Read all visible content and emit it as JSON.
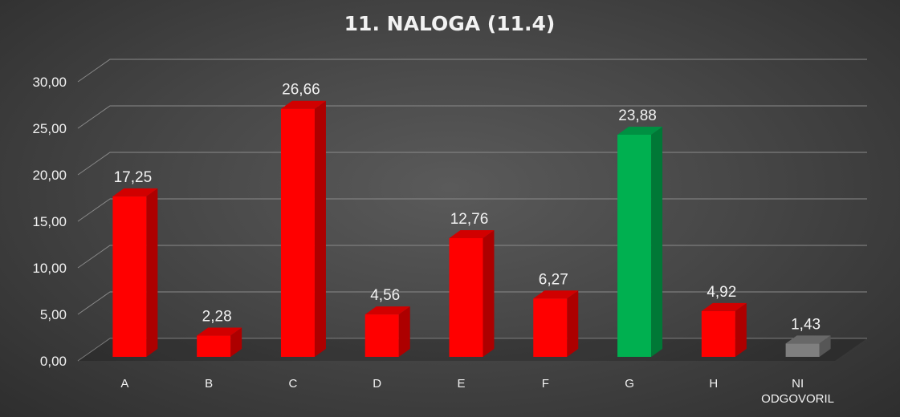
{
  "chart_data": {
    "type": "bar",
    "title": "11. NALOGA (11.4)",
    "categories": [
      "A",
      "B",
      "C",
      "D",
      "E",
      "F",
      "G",
      "H",
      "NI ODGOVORIL"
    ],
    "values": [
      17.25,
      2.28,
      26.66,
      4.56,
      12.76,
      6.27,
      23.88,
      4.92,
      1.43
    ],
    "value_labels": [
      "17,25",
      "2,28",
      "26,66",
      "4,56",
      "12,76",
      "6,27",
      "23,88",
      "4,92",
      "1,43"
    ],
    "bar_colors": [
      "#ff0000",
      "#ff0000",
      "#ff0000",
      "#ff0000",
      "#ff0000",
      "#ff0000",
      "#00b050",
      "#ff0000",
      "#7f7f7f"
    ],
    "ylim": [
      0,
      30
    ],
    "yticks": [
      0,
      5,
      10,
      15,
      20,
      25,
      30
    ],
    "ytick_labels": [
      "0,00",
      "5,00",
      "10,00",
      "15,00",
      "20,00",
      "25,00",
      "30,00"
    ],
    "xlabel": "",
    "ylabel": "",
    "grid": true,
    "style": "3d-columns"
  }
}
